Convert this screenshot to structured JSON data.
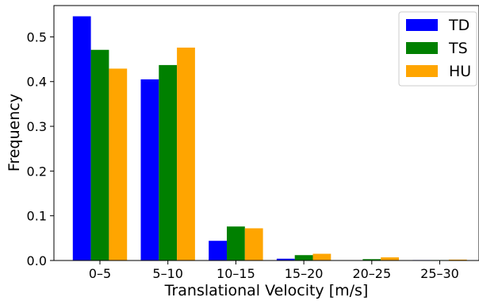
{
  "chart_data": {
    "type": "bar",
    "title": "",
    "xlabel": "Translational Velocity [m/s]",
    "ylabel": "Frequency",
    "categories": [
      "0–5",
      "5–10",
      "10–15",
      "15–20",
      "20–25",
      "25–30"
    ],
    "series": [
      {
        "name": "TD",
        "color": "#0000ff",
        "values": [
          0.546,
          0.405,
          0.044,
          0.004,
          0.0,
          0.001
        ]
      },
      {
        "name": "TS",
        "color": "#008000",
        "values": [
          0.471,
          0.437,
          0.076,
          0.012,
          0.003,
          0.001
        ]
      },
      {
        "name": "HU",
        "color": "#ffa500",
        "values": [
          0.429,
          0.476,
          0.072,
          0.015,
          0.007,
          0.002
        ]
      }
    ],
    "yticks": [
      "0.0",
      "0.1",
      "0.2",
      "0.3",
      "0.4",
      "0.5"
    ],
    "ylim": [
      0,
      0.57
    ],
    "grid": false,
    "legend_position": "top-right"
  }
}
